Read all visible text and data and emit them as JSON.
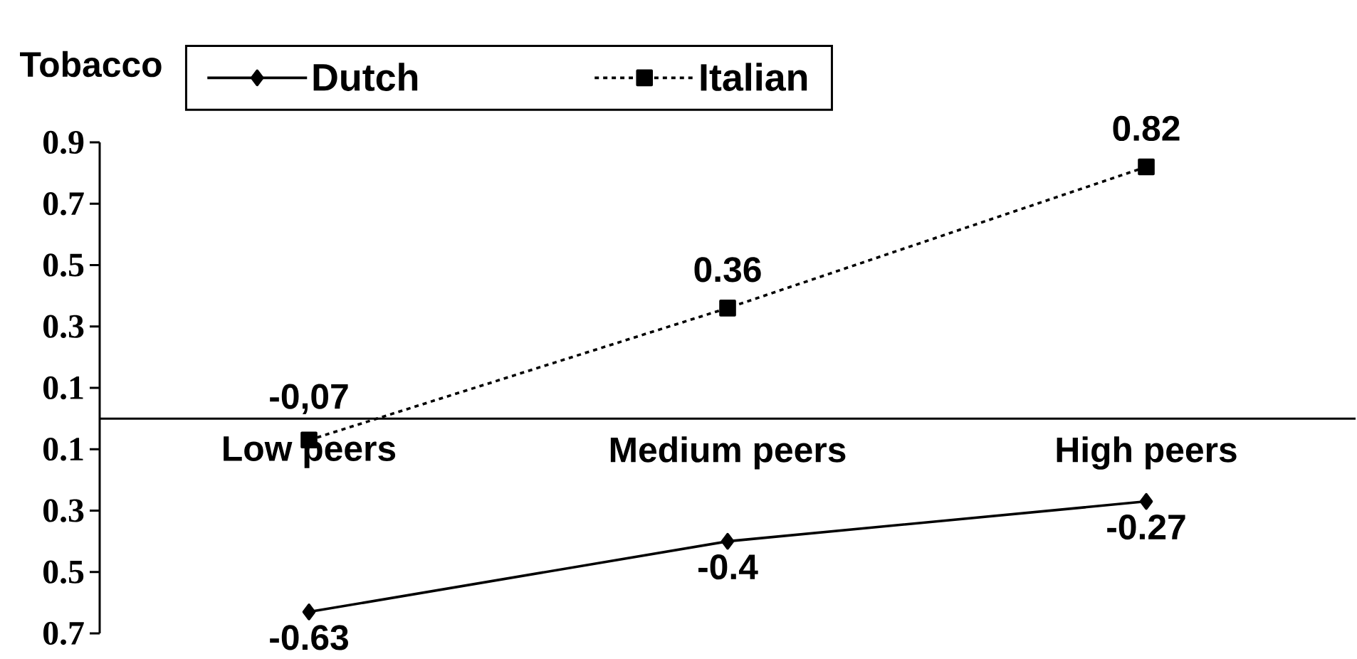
{
  "chart_data": {
    "type": "line",
    "title": "Tobacco",
    "categories": [
      "Low peers",
      "Medium peers",
      "High peers"
    ],
    "series": [
      {
        "name": "Dutch",
        "color": "#000000",
        "marker": "diamond",
        "line_style": "solid",
        "values": [
          -0.63,
          -0.4,
          -0.27
        ],
        "value_labels": [
          "-0.63",
          "-0.4",
          "-0.27"
        ]
      },
      {
        "name": "Italian",
        "color": "#000000",
        "marker": "square",
        "line_style": "dashed",
        "values": [
          -0.07,
          0.36,
          0.82
        ],
        "value_labels": [
          "-0,07",
          "0.36",
          "0.82"
        ]
      }
    ],
    "ylim": [
      -0.7,
      0.9
    ],
    "yticks": [
      {
        "value": -0.7,
        "label": "0.7"
      },
      {
        "value": -0.5,
        "label": "0.5"
      },
      {
        "value": -0.3,
        "label": "0.3"
      },
      {
        "value": -0.1,
        "label": "0.1"
      },
      0.1,
      0.3,
      0.5,
      0.7,
      0.9
    ],
    "grid": false,
    "legend": "top"
  }
}
